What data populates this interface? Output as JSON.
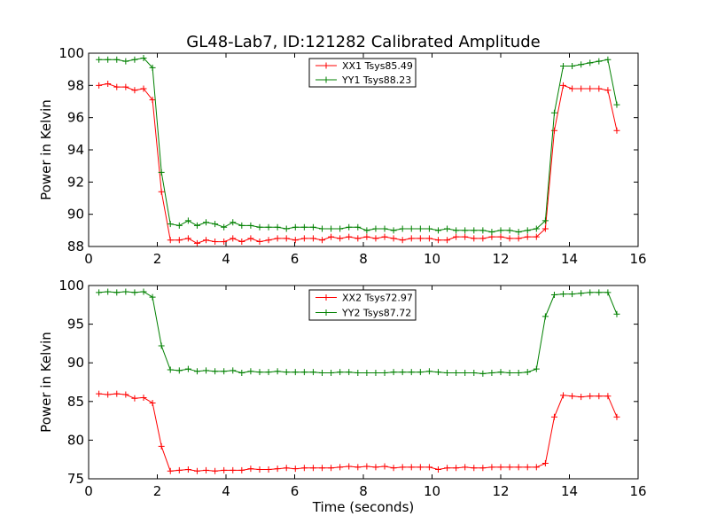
{
  "figure_title": "GL48-Lab7, ID:121282 Calibrated Amplitude",
  "chart_data": [
    {
      "type": "line",
      "ylabel": "Power in Kelvin",
      "xlabel": "",
      "xlim": [
        0,
        16
      ],
      "ylim": [
        88,
        100
      ],
      "x_ticks": [
        0,
        2,
        4,
        6,
        8,
        10,
        12,
        14,
        16
      ],
      "y_ticks": [
        88,
        90,
        92,
        94,
        96,
        98,
        100
      ],
      "legend_position": "top-center",
      "x": [
        0.3,
        0.56,
        0.82,
        1.08,
        1.34,
        1.6,
        1.86,
        2.12,
        2.38,
        2.64,
        2.9,
        3.16,
        3.42,
        3.68,
        3.94,
        4.2,
        4.46,
        4.72,
        4.98,
        5.24,
        5.5,
        5.76,
        6.02,
        6.28,
        6.54,
        6.8,
        7.06,
        7.32,
        7.58,
        7.84,
        8.1,
        8.36,
        8.62,
        8.88,
        9.14,
        9.4,
        9.66,
        9.92,
        10.18,
        10.44,
        10.7,
        10.96,
        11.22,
        11.48,
        11.74,
        12.0,
        12.26,
        12.52,
        12.78,
        13.04,
        13.3,
        13.56,
        13.82,
        14.08,
        14.34,
        14.6,
        14.86,
        15.12,
        15.38
      ],
      "series": [
        {
          "name": "XX1 Tsys85.49",
          "color": "#ff0000",
          "values": [
            98.0,
            98.1,
            97.9,
            97.9,
            97.7,
            97.8,
            97.1,
            91.4,
            88.4,
            88.4,
            88.5,
            88.2,
            88.4,
            88.3,
            88.3,
            88.5,
            88.3,
            88.5,
            88.3,
            88.4,
            88.5,
            88.5,
            88.4,
            88.5,
            88.5,
            88.4,
            88.6,
            88.5,
            88.6,
            88.5,
            88.6,
            88.5,
            88.6,
            88.5,
            88.4,
            88.5,
            88.5,
            88.5,
            88.4,
            88.4,
            88.6,
            88.6,
            88.5,
            88.5,
            88.6,
            88.6,
            88.5,
            88.5,
            88.6,
            88.6,
            89.1,
            95.2,
            98.0,
            97.8,
            97.8,
            97.8,
            97.8,
            97.7,
            95.2
          ]
        },
        {
          "name": "YY1 Tsys88.23",
          "color": "#008000",
          "values": [
            99.6,
            99.6,
            99.6,
            99.5,
            99.6,
            99.7,
            99.1,
            92.6,
            89.4,
            89.3,
            89.6,
            89.3,
            89.5,
            89.4,
            89.2,
            89.5,
            89.3,
            89.3,
            89.2,
            89.2,
            89.2,
            89.1,
            89.2,
            89.2,
            89.2,
            89.1,
            89.1,
            89.1,
            89.2,
            89.2,
            89.0,
            89.1,
            89.1,
            89.0,
            89.1,
            89.1,
            89.1,
            89.1,
            89.0,
            89.1,
            89.0,
            89.0,
            89.0,
            89.0,
            88.9,
            89.0,
            89.0,
            88.9,
            89.0,
            89.1,
            89.6,
            96.3,
            99.2,
            99.2,
            99.3,
            99.4,
            99.5,
            99.6,
            96.8
          ]
        }
      ]
    },
    {
      "type": "line",
      "ylabel": "Power in Kelvin",
      "xlabel": "Time (seconds)",
      "xlim": [
        0,
        16
      ],
      "ylim": [
        75,
        100
      ],
      "x_ticks": [
        0,
        2,
        4,
        6,
        8,
        10,
        12,
        14,
        16
      ],
      "y_ticks": [
        75,
        80,
        85,
        90,
        95,
        100
      ],
      "legend_position": "top-center",
      "x": [
        0.3,
        0.56,
        0.82,
        1.08,
        1.34,
        1.6,
        1.86,
        2.12,
        2.38,
        2.64,
        2.9,
        3.16,
        3.42,
        3.68,
        3.94,
        4.2,
        4.46,
        4.72,
        4.98,
        5.24,
        5.5,
        5.76,
        6.02,
        6.28,
        6.54,
        6.8,
        7.06,
        7.32,
        7.58,
        7.84,
        8.1,
        8.36,
        8.62,
        8.88,
        9.14,
        9.4,
        9.66,
        9.92,
        10.18,
        10.44,
        10.7,
        10.96,
        11.22,
        11.48,
        11.74,
        12.0,
        12.26,
        12.52,
        12.78,
        13.04,
        13.3,
        13.56,
        13.82,
        14.08,
        14.34,
        14.6,
        14.86,
        15.12,
        15.38
      ],
      "series": [
        {
          "name": "XX2 Tsys72.97",
          "color": "#ff0000",
          "values": [
            86.0,
            85.9,
            86.0,
            85.9,
            85.4,
            85.5,
            84.8,
            79.2,
            76.0,
            76.1,
            76.2,
            76.0,
            76.1,
            76.0,
            76.1,
            76.1,
            76.1,
            76.3,
            76.2,
            76.2,
            76.3,
            76.4,
            76.3,
            76.4,
            76.4,
            76.4,
            76.4,
            76.5,
            76.6,
            76.5,
            76.6,
            76.5,
            76.6,
            76.4,
            76.5,
            76.5,
            76.5,
            76.5,
            76.2,
            76.4,
            76.4,
            76.5,
            76.4,
            76.4,
            76.5,
            76.5,
            76.5,
            76.5,
            76.5,
            76.5,
            77.0,
            83.0,
            85.8,
            85.7,
            85.6,
            85.7,
            85.7,
            85.7,
            83.0
          ]
        },
        {
          "name": "YY2 Tsys87.72",
          "color": "#008000",
          "values": [
            99.1,
            99.2,
            99.1,
            99.2,
            99.1,
            99.2,
            98.5,
            92.2,
            89.1,
            89.0,
            89.2,
            88.9,
            89.0,
            88.9,
            88.9,
            89.0,
            88.7,
            88.9,
            88.8,
            88.8,
            88.9,
            88.8,
            88.8,
            88.8,
            88.8,
            88.7,
            88.7,
            88.8,
            88.8,
            88.7,
            88.7,
            88.7,
            88.7,
            88.8,
            88.8,
            88.8,
            88.8,
            88.9,
            88.8,
            88.7,
            88.7,
            88.7,
            88.7,
            88.6,
            88.7,
            88.8,
            88.7,
            88.7,
            88.8,
            89.2,
            96.0,
            98.8,
            98.9,
            98.9,
            99.0,
            99.1,
            99.1,
            99.1,
            96.3
          ]
        }
      ]
    }
  ]
}
